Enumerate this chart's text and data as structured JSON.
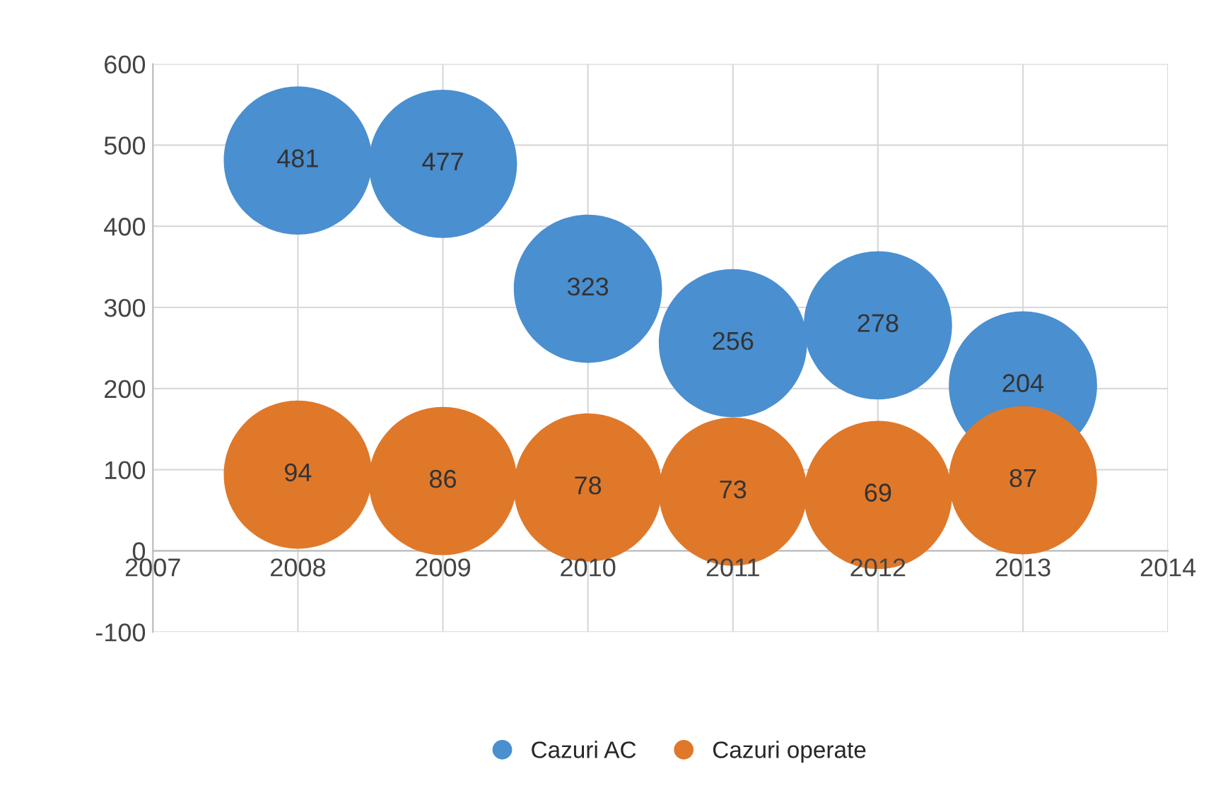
{
  "chart_data": {
    "type": "bubble",
    "x": [
      2008,
      2009,
      2010,
      2011,
      2012,
      2013
    ],
    "series": [
      {
        "name": "Cazuri AC",
        "color": "#4a8fd0",
        "values": [
          481,
          477,
          323,
          256,
          278,
          204
        ],
        "sizes": [
          1,
          1,
          1,
          1,
          1,
          1
        ]
      },
      {
        "name": "Cazuri operate",
        "color": "#e0782a",
        "values": [
          94,
          86,
          78,
          73,
          69,
          87
        ],
        "sizes": [
          1,
          1,
          1,
          1,
          1,
          1
        ]
      }
    ],
    "xlim": [
      2007,
      2014
    ],
    "xticks": [
      2007,
      2008,
      2009,
      2010,
      2011,
      2012,
      2013,
      2014
    ],
    "ylim": [
      -100,
      600
    ],
    "yticks": [
      -100,
      0,
      100,
      200,
      300,
      400,
      500,
      600
    ],
    "grid": true,
    "legend": "bottom",
    "data_labels": true
  }
}
